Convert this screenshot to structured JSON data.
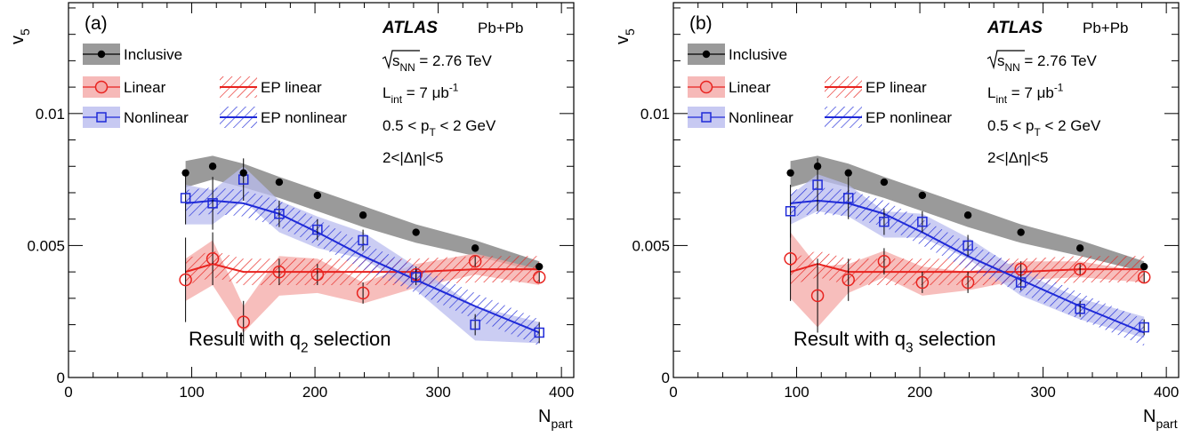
{
  "colors": {
    "inclusive_band": "#9a9a9a",
    "linear": "#e8231f",
    "linear_band": "#f4a8a6",
    "nonlinear": "#1f2ad8",
    "nonlinear_band": "#b9bcef",
    "marker_black": "#000000"
  },
  "chart_data": [
    {
      "type": "scatter",
      "panel_label": "(a)",
      "experiment": "ATLAS",
      "system": "Pb+Pb",
      "energy_label": "= 2.76 TeV",
      "energy_symbol": "s",
      "energy_sub": "NN",
      "lumi_label_main": "L",
      "lumi_label_sub": "int",
      "lumi_value": "= 7 μb",
      "lumi_sup": "-1",
      "pt_text_pre": "0.5 < p",
      "pt_sub": "T",
      "pt_text_post": "< 2 GeV",
      "eta_text": "2<|Δη|<5",
      "result_text_pre": "Result with q",
      "result_sub": "2",
      "result_text_post": "selection",
      "ylabel": "v",
      "ylabel_sub": "5",
      "xlabel": "N",
      "xlabel_sub": "part",
      "xlim": [
        0,
        410
      ],
      "ylim": [
        0,
        0.0142
      ],
      "xticks": [
        "0",
        "100",
        "200",
        "300",
        "400"
      ],
      "xtick_values": [
        0,
        100,
        200,
        300,
        400
      ],
      "yticks": [
        "0",
        "0.005",
        "0.01"
      ],
      "ytick_values": [
        0,
        0.005,
        0.01
      ],
      "legend": {
        "inclusive": "Inclusive",
        "linear": "Linear",
        "nonlinear": "Nonlinear",
        "ep_linear": "EP linear",
        "ep_nonlinear": "EP nonlinear"
      },
      "x": [
        95,
        117,
        142,
        171,
        202,
        239,
        282,
        330,
        382
      ],
      "series": [
        {
          "name": "Inclusive",
          "values": [
            0.00775,
            0.008,
            0.00775,
            0.0074,
            0.0069,
            0.00615,
            0.0055,
            0.0049,
            0.0042
          ],
          "band_lo": [
            0.0072,
            0.0075,
            0.0072,
            0.0068,
            0.0063,
            0.0057,
            0.0051,
            0.0046,
            0.004
          ],
          "band_hi": [
            0.0082,
            0.0084,
            0.0081,
            0.0076,
            0.0071,
            0.0065,
            0.0058,
            0.0052,
            0.0044
          ],
          "err": [
            5e-05,
            5e-05,
            5e-05,
            5e-05,
            5e-05,
            5e-05,
            5e-05,
            5e-05,
            5e-05
          ]
        },
        {
          "name": "Linear",
          "values": [
            0.0037,
            0.0045,
            0.0021,
            0.004,
            0.0039,
            0.0032,
            0.0039,
            0.0044,
            0.0038
          ],
          "band_lo": [
            0.0029,
            0.0035,
            0.0017,
            0.0031,
            0.0032,
            0.0028,
            0.0034,
            0.0039,
            0.0035
          ],
          "band_hi": [
            0.0045,
            0.0052,
            0.0027,
            0.0046,
            0.0045,
            0.0036,
            0.0043,
            0.0047,
            0.0041
          ],
          "err": [
            0.0016,
            0.001,
            0.0008,
            0.0005,
            0.0004,
            0.0004,
            0.0003,
            0.0002,
            0.0002
          ]
        },
        {
          "name": "Nonlinear",
          "values": [
            0.0068,
            0.0066,
            0.0075,
            0.0062,
            0.0056,
            0.0052,
            0.0038,
            0.002,
            0.0017
          ],
          "band_lo": [
            0.0058,
            0.0058,
            0.0067,
            0.0055,
            0.0049,
            0.0045,
            0.0033,
            0.0014,
            0.0013
          ],
          "band_hi": [
            0.0073,
            0.0071,
            0.008,
            0.0067,
            0.0061,
            0.0055,
            0.0042,
            0.0027,
            0.0021
          ],
          "err": [
            0.001,
            0.001,
            0.0008,
            0.0005,
            0.0004,
            0.0004,
            0.0003,
            0.0004,
            0.0004
          ]
        },
        {
          "name": "EP linear",
          "values": [
            0.004,
            0.0043,
            0.004,
            0.004,
            0.004,
            0.004,
            0.004,
            0.0041,
            0.0041
          ],
          "half_width": 0.0005
        },
        {
          "name": "EP nonlinear",
          "values": [
            0.0066,
            0.0067,
            0.0066,
            0.0062,
            0.0055,
            0.0046,
            0.0037,
            0.0027,
            0.0017
          ],
          "half_width": 0.0005
        }
      ]
    },
    {
      "type": "scatter",
      "panel_label": "(b)",
      "experiment": "ATLAS",
      "system": "Pb+Pb",
      "energy_label": "= 2.76 TeV",
      "energy_symbol": "s",
      "energy_sub": "NN",
      "lumi_label_main": "L",
      "lumi_label_sub": "int",
      "lumi_value": "= 7 μb",
      "lumi_sup": "-1",
      "pt_text_pre": "0.5 < p",
      "pt_sub": "T",
      "pt_text_post": "< 2 GeV",
      "eta_text": "2<|Δη|<5",
      "result_text_pre": "Result with q",
      "result_sub": "3",
      "result_text_post": "selection",
      "ylabel": "v",
      "ylabel_sub": "5",
      "xlabel": "N",
      "xlabel_sub": "part",
      "xlim": [
        0,
        410
      ],
      "ylim": [
        0,
        0.0142
      ],
      "xticks": [
        "0",
        "100",
        "200",
        "300",
        "400"
      ],
      "xtick_values": [
        0,
        100,
        200,
        300,
        400
      ],
      "yticks": [
        "0",
        "0.005",
        "0.01"
      ],
      "ytick_values": [
        0,
        0.005,
        0.01
      ],
      "legend": {
        "inclusive": "Inclusive",
        "linear": "Linear",
        "nonlinear": "Nonlinear",
        "ep_linear": "EP linear",
        "ep_nonlinear": "EP nonlinear"
      },
      "x": [
        95,
        117,
        142,
        171,
        202,
        239,
        282,
        330,
        382
      ],
      "series": [
        {
          "name": "Inclusive",
          "values": [
            0.00775,
            0.008,
            0.00775,
            0.0074,
            0.0069,
            0.00615,
            0.0055,
            0.0049,
            0.0042
          ],
          "band_lo": [
            0.0072,
            0.0075,
            0.0072,
            0.0068,
            0.0063,
            0.0057,
            0.0051,
            0.0046,
            0.004
          ],
          "band_hi": [
            0.0082,
            0.0084,
            0.0081,
            0.0076,
            0.0071,
            0.0065,
            0.0058,
            0.0052,
            0.0044
          ],
          "err": [
            5e-05,
            5e-05,
            5e-05,
            5e-05,
            5e-05,
            5e-05,
            5e-05,
            5e-05,
            5e-05
          ]
        },
        {
          "name": "Linear",
          "values": [
            0.0045,
            0.0031,
            0.0037,
            0.0044,
            0.0036,
            0.0036,
            0.0041,
            0.0041,
            0.0038
          ],
          "band_lo": [
            0.003,
            0.0019,
            0.0032,
            0.0038,
            0.0031,
            0.0033,
            0.0037,
            0.0038,
            0.0036
          ],
          "band_hi": [
            0.0055,
            0.0042,
            0.0043,
            0.0048,
            0.0042,
            0.004,
            0.0044,
            0.0044,
            0.004
          ],
          "err": [
            0.0016,
            0.0014,
            0.0008,
            0.0005,
            0.0004,
            0.0004,
            0.0003,
            0.0002,
            0.0002
          ]
        },
        {
          "name": "Nonlinear",
          "values": [
            0.0063,
            0.0073,
            0.0068,
            0.0059,
            0.0059,
            0.005,
            0.0036,
            0.0026,
            0.0019
          ],
          "band_lo": [
            0.0058,
            0.0063,
            0.0061,
            0.0053,
            0.0053,
            0.0045,
            0.0031,
            0.0022,
            0.0015
          ],
          "band_hi": [
            0.0069,
            0.0077,
            0.0073,
            0.0063,
            0.0062,
            0.0053,
            0.004,
            0.003,
            0.0023
          ],
          "err": [
            0.001,
            0.001,
            0.0008,
            0.0005,
            0.0004,
            0.0004,
            0.0003,
            0.0003,
            0.0003
          ]
        },
        {
          "name": "EP linear",
          "values": [
            0.004,
            0.0043,
            0.004,
            0.004,
            0.004,
            0.004,
            0.004,
            0.0041,
            0.0041
          ],
          "half_width": 0.0005
        },
        {
          "name": "EP nonlinear",
          "values": [
            0.0066,
            0.0067,
            0.0066,
            0.0062,
            0.0055,
            0.0046,
            0.0037,
            0.0027,
            0.0017
          ],
          "half_width": 0.0005
        }
      ]
    }
  ]
}
